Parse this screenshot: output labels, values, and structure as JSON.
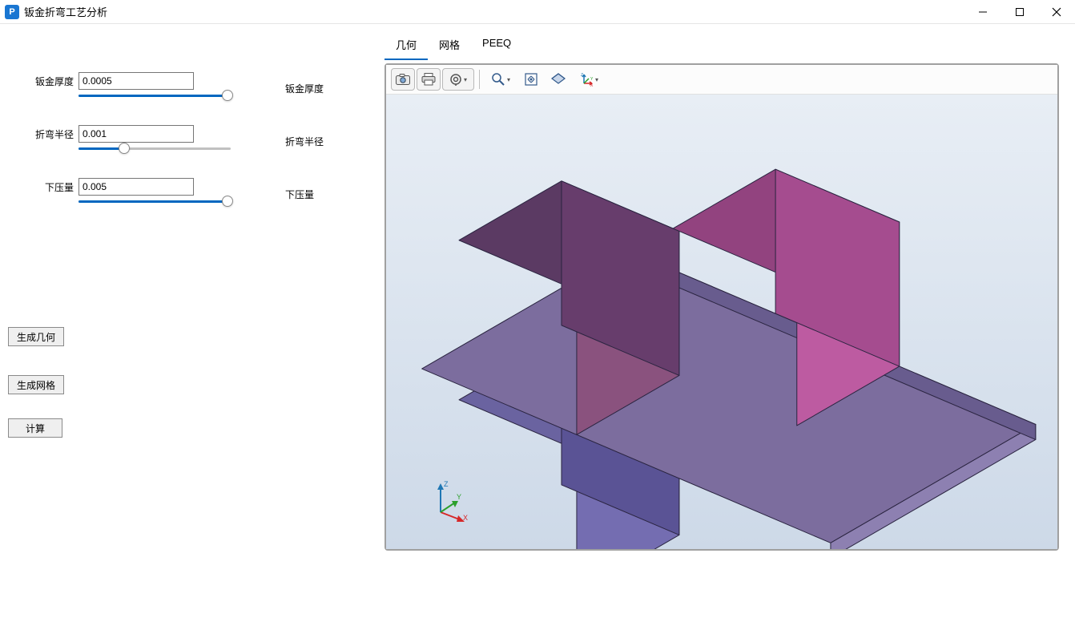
{
  "window": {
    "title": "钣金折弯工艺分析",
    "icon_letter": "P"
  },
  "params": {
    "thickness": {
      "label": "钣金厚度",
      "value": "0.0005",
      "right_label": "钣金厚度",
      "slider_pct": 98
    },
    "radius": {
      "label": "折弯半径",
      "value": "0.001",
      "right_label": "折弯半径",
      "slider_pct": 30
    },
    "press": {
      "label": "下压量",
      "value": "0.005",
      "right_label": "下压量",
      "slider_pct": 98
    }
  },
  "buttons": {
    "gen_geom": "生成几何",
    "gen_mesh": "生成网格",
    "compute": "计算"
  },
  "tabs": {
    "geom": "几何",
    "mesh": "网格",
    "peeq": "PEEQ",
    "active": "geom"
  },
  "viewport": {
    "background_top": "#e8eef5",
    "background_bottom": "#cdd9e8",
    "geometry": {
      "upper_die": {
        "top": "#5b3a63",
        "front": "#673d6c",
        "side": "#8a527e"
      },
      "punch": {
        "top": "#92437f",
        "front": "#a54c8f",
        "side": "#bd5ba1"
      },
      "sheet": {
        "top": "#7c6d9e",
        "front": "#685c8e",
        "side": "#8d80b1"
      },
      "lower_die": {
        "top": "#6a63a0",
        "front": "#5a5395",
        "side": "#746db1"
      }
    },
    "axis_labels": {
      "x": "X",
      "y": "Y",
      "z": "Z"
    },
    "axis_colors": {
      "x": "#d62728",
      "y": "#2ca02c",
      "z": "#1f77b4"
    }
  },
  "toolbar_icons": {
    "snapshot": "camera-icon",
    "print": "print-icon",
    "settings": "target-icon",
    "zoom": "zoom-icon",
    "fit": "fit-icon",
    "bounds": "bounds-icon",
    "orient": "axis-icon"
  }
}
